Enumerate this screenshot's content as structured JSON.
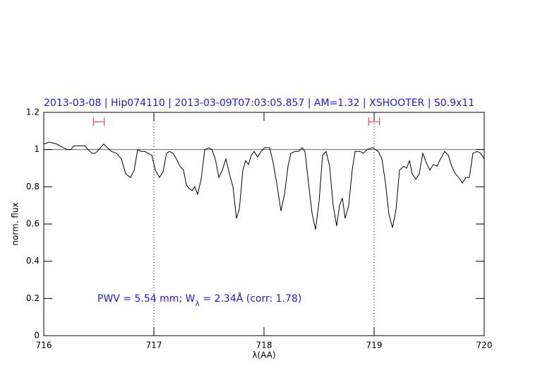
{
  "chart_data": {
    "type": "line",
    "title": "2013-03-08 | Hip074110 | 2013-03-09T07:03:05.857 | AM=1.32 | XSHOOTER | S0.9x11",
    "xlabel": "λ(AA)",
    "ylabel": "norm. flux",
    "annotation": [
      "PWV = 5.54 mm; W",
      "λ",
      " = 2.34Å (corr: 1.78)"
    ],
    "xlim": [
      716,
      720
    ],
    "xticks": [
      716,
      717,
      718,
      719,
      720
    ],
    "ylim": [
      0,
      1.2
    ],
    "yticks": [
      0,
      0.2,
      0.4,
      0.6,
      0.8,
      1,
      1.2
    ],
    "color": "#000000",
    "hline": 1,
    "hline_color": "#e03030",
    "vlines": [
      717,
      719
    ],
    "intervals": [
      {
        "x": [
          716.45,
          716.55
        ],
        "y": 1.15
      },
      {
        "x": [
          718.95,
          719.05
        ],
        "y": 1.15
      }
    ],
    "interval_color": "#e03030",
    "x": [
      716.0,
      716.051,
      716.115,
      716.179,
      716.212,
      716.244,
      716.276,
      716.321,
      716.372,
      716.404,
      716.436,
      716.468,
      716.5,
      716.545,
      716.577,
      716.615,
      716.66,
      716.705,
      716.744,
      716.788,
      716.821,
      716.853,
      716.885,
      716.917,
      716.949,
      716.981,
      717.013,
      717.051,
      717.083,
      717.115,
      717.141,
      717.173,
      717.205,
      717.237,
      717.269,
      717.295,
      717.321,
      717.346,
      717.372,
      717.397,
      717.429,
      717.462,
      717.5,
      717.526,
      717.558,
      717.59,
      717.622,
      717.654,
      717.686,
      717.718,
      717.75,
      717.776,
      717.808,
      717.833,
      717.859,
      717.885,
      717.91,
      717.942,
      717.974,
      718.006,
      718.051,
      718.083,
      718.115,
      718.154,
      718.186,
      718.218,
      718.244,
      718.282,
      718.314,
      718.346,
      718.372,
      718.404,
      718.436,
      718.468,
      718.5,
      718.532,
      718.564,
      718.596,
      718.628,
      718.66,
      718.686,
      718.712,
      718.737,
      718.769,
      718.801,
      718.827,
      718.872,
      718.904,
      718.936,
      718.987,
      719.038,
      719.071,
      719.103,
      719.135,
      719.167,
      719.199,
      719.231,
      719.269,
      719.295,
      719.321,
      719.346,
      719.378,
      719.41,
      719.442,
      719.474,
      719.506,
      719.538,
      719.571,
      719.603,
      719.641,
      719.673,
      719.705,
      719.737,
      719.769,
      719.801,
      719.833,
      719.865,
      719.897,
      719.936,
      719.968,
      720.0
    ],
    "values": [
      1.03,
      1.04,
      1.03,
      1.01,
      1.0,
      1.0,
      1.02,
      1.02,
      1.02,
      1.0,
      0.98,
      0.98,
      1.0,
      1.03,
      1.01,
      0.99,
      0.98,
      0.95,
      0.87,
      0.85,
      0.89,
      1.0,
      0.99,
      0.99,
      0.98,
      0.97,
      0.89,
      0.85,
      0.88,
      0.98,
      0.99,
      0.98,
      0.95,
      0.91,
      0.89,
      0.81,
      0.79,
      0.78,
      0.8,
      0.76,
      0.84,
      1.0,
      1.01,
      1.0,
      0.95,
      0.85,
      0.89,
      0.95,
      0.87,
      0.8,
      0.63,
      0.68,
      0.89,
      0.94,
      0.92,
      0.97,
      0.99,
      0.96,
      0.99,
      1.01,
      1.01,
      0.93,
      0.82,
      0.67,
      0.76,
      0.91,
      0.98,
      0.99,
      0.99,
      1.01,
      0.99,
      0.82,
      0.66,
      0.57,
      0.72,
      0.97,
      0.99,
      0.91,
      0.7,
      0.59,
      0.7,
      0.74,
      0.63,
      0.7,
      0.89,
      0.99,
      0.99,
      0.98,
      1.0,
      1.01,
      0.99,
      0.95,
      0.82,
      0.65,
      0.58,
      0.68,
      0.89,
      0.91,
      0.9,
      0.94,
      0.87,
      0.84,
      0.87,
      0.98,
      0.93,
      0.89,
      0.92,
      0.91,
      0.95,
      0.99,
      0.97,
      0.91,
      0.87,
      0.85,
      0.82,
      0.85,
      0.85,
      0.98,
      0.99,
      0.98,
      0.95
    ]
  }
}
